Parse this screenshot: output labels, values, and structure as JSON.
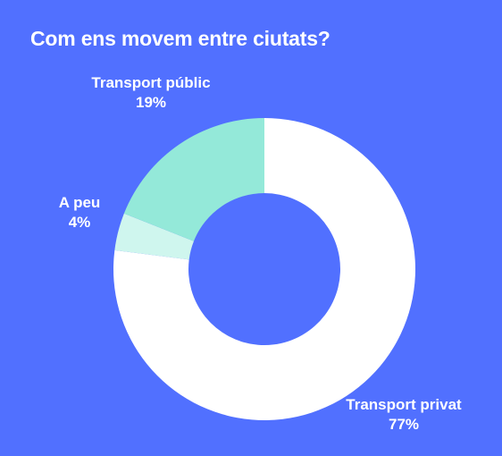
{
  "chart_data": {
    "type": "pie",
    "title": "Com ens movem entre ciutats?",
    "donut": true,
    "start_angle_deg": 0,
    "direction": "clockwise",
    "slices": [
      {
        "label": "Transport privat",
        "value": 77,
        "value_label": "77%",
        "color": "#FFFFFF"
      },
      {
        "label": "A peu",
        "value": 4,
        "value_label": "4%",
        "color": "#CFF6EE"
      },
      {
        "label": "Transport públic",
        "value": 19,
        "value_label": "19%",
        "color": "#94E9D9"
      }
    ],
    "background_color": "#5170FF",
    "legend": "none"
  }
}
